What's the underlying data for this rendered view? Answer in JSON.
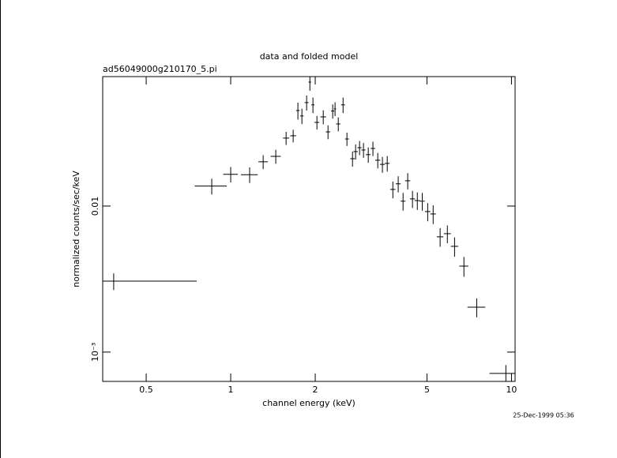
{
  "chart_data": {
    "type": "errorbar-scatter",
    "title": "data and folded model",
    "subtitle": "ad56049000g210170_5.pi",
    "x_label": "channel energy (keV)",
    "y_label": "normalized counts/sec/keV",
    "annotation": "25-Dec-1999 05:36",
    "x_log": true,
    "y_log": true,
    "xlim": [
      0.35,
      10.3
    ],
    "ylim": [
      0.00063,
      0.077
    ],
    "xticks": [
      0.5,
      1,
      2,
      5,
      10
    ],
    "yticks": [
      0.01,
      {
        "value": 0.001,
        "label": "10⁻³"
      }
    ],
    "color": "#000000",
    "x": [
      0.383,
      0.856,
      1.0,
      1.168,
      1.305,
      1.447,
      1.575,
      1.669,
      1.735,
      1.793,
      1.864,
      1.914,
      1.963,
      2.028,
      2.136,
      2.221,
      2.308,
      2.353,
      2.416,
      2.513,
      2.594,
      2.715,
      2.785,
      2.877,
      2.971,
      3.09,
      3.21,
      3.34,
      3.47,
      3.61,
      3.78,
      3.95,
      4.11,
      4.27,
      4.44,
      4.62,
      4.81,
      5.03,
      5.26,
      5.57,
      5.91,
      6.27,
      6.77,
      7.52,
      9.55
    ],
    "xerr": [
      0.374,
      0.112,
      0.06,
      0.08,
      0.05,
      0.06,
      0.04,
      0.04,
      0.025,
      0.025,
      0.03,
      0.02,
      0.025,
      0.04,
      0.05,
      0.04,
      0.03,
      0.02,
      0.04,
      0.04,
      0.04,
      0.05,
      0.05,
      0.05,
      0.05,
      0.06,
      0.06,
      0.07,
      0.07,
      0.07,
      0.08,
      0.08,
      0.08,
      0.09,
      0.09,
      0.1,
      0.1,
      0.11,
      0.12,
      0.15,
      0.17,
      0.19,
      0.25,
      0.55,
      1.2
    ],
    "values": [
      0.00306,
      0.0137,
      0.0165,
      0.0164,
      0.0201,
      0.0219,
      0.0292,
      0.0303,
      0.0451,
      0.0414,
      0.0511,
      0.0706,
      0.0493,
      0.0374,
      0.0408,
      0.0322,
      0.0447,
      0.0463,
      0.0365,
      0.0493,
      0.0288,
      0.0211,
      0.0236,
      0.0251,
      0.0242,
      0.0225,
      0.0248,
      0.0206,
      0.0193,
      0.0196,
      0.013,
      0.0142,
      0.0108,
      0.0149,
      0.0112,
      0.0109,
      0.0108,
      0.00917,
      0.00883,
      0.00616,
      0.00647,
      0.0053,
      0.00388,
      0.00203,
      0.000715
    ],
    "yerr": [
      0.0004,
      0.0017,
      0.002,
      0.002,
      0.0022,
      0.0024,
      0.003,
      0.003,
      0.006,
      0.005,
      0.006,
      0.009,
      0.006,
      0.004,
      0.0045,
      0.0035,
      0.005,
      0.005,
      0.004,
      0.006,
      0.003,
      0.0025,
      0.0028,
      0.0028,
      0.0028,
      0.0027,
      0.0028,
      0.0025,
      0.0024,
      0.0024,
      0.0017,
      0.0018,
      0.0015,
      0.0019,
      0.0015,
      0.0015,
      0.0015,
      0.0013,
      0.0013,
      0.0009,
      0.0009,
      0.0008,
      0.0006,
      0.0003,
      0.0001
    ]
  }
}
